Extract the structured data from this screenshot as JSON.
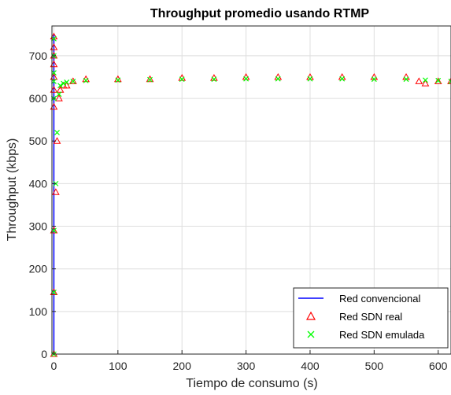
{
  "chart_data": {
    "type": "scatter",
    "title": "Throughput promedio usando RTMP",
    "xlabel": "Tiempo de consumo (s)",
    "ylabel": "Throughput (kbps)",
    "xlim": [
      -3,
      620
    ],
    "ylim": [
      0,
      770
    ],
    "xticks": [
      0,
      100,
      200,
      300,
      400,
      500,
      600
    ],
    "yticks": [
      0,
      100,
      200,
      300,
      400,
      500,
      600,
      700
    ],
    "grid": true,
    "legend_position": "bottom-right",
    "series": [
      {
        "name": "Red convencional",
        "marker": "line",
        "color": "#0000ff",
        "x": [
          0,
          0
        ],
        "y": [
          0,
          750
        ]
      },
      {
        "name": "Red SDN real",
        "marker": "triangle",
        "color": "#ff0000",
        "x": [
          0,
          0,
          0,
          0,
          0,
          0,
          0,
          0,
          0,
          0,
          3,
          5,
          8,
          10,
          15,
          20,
          30,
          50,
          100,
          150,
          200,
          250,
          300,
          350,
          400,
          450,
          500,
          550,
          570,
          580,
          600,
          620
        ],
        "y": [
          0,
          145,
          290,
          580,
          620,
          650,
          680,
          700,
          720,
          745,
          380,
          500,
          600,
          620,
          630,
          630,
          640,
          645,
          645,
          645,
          648,
          648,
          650,
          650,
          650,
          650,
          650,
          650,
          640,
          635,
          640,
          640
        ]
      },
      {
        "name": "Red SDN emulada",
        "marker": "x",
        "color": "#00ff00",
        "x": [
          0,
          0,
          0,
          0,
          0,
          0,
          0,
          0,
          3,
          5,
          8,
          10,
          15,
          20,
          30,
          50,
          100,
          150,
          200,
          250,
          300,
          350,
          400,
          450,
          500,
          550,
          580,
          600,
          620
        ],
        "y": [
          0,
          145,
          290,
          600,
          640,
          660,
          700,
          740,
          400,
          520,
          610,
          630,
          635,
          638,
          640,
          642,
          643,
          644,
          645,
          645,
          646,
          646,
          646,
          646,
          645,
          645,
          643,
          642,
          640
        ]
      }
    ]
  }
}
